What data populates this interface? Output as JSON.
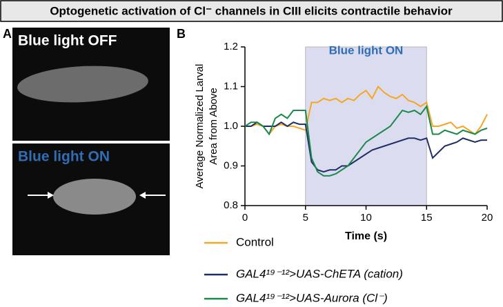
{
  "figure_title": "Optogenetic activation of Cl⁻ channels in CIII elicits contractile behavior",
  "panel_a": {
    "label": "A",
    "top_caption": "Blue light OFF",
    "bottom_caption": "Blue light ON"
  },
  "chart_data": {
    "type": "line",
    "panel_label": "B",
    "xlabel": "Time (s)",
    "ylabel": [
      "Average Normalized Larval",
      "Area from Above"
    ],
    "annotation": {
      "text": "Blue light ON",
      "x": [
        5,
        15
      ],
      "color": "#2f6db5",
      "shade": "#dcdcf0"
    },
    "x": [
      0,
      0.5,
      1,
      1.5,
      2,
      2.5,
      3,
      3.5,
      4,
      4.5,
      5,
      5.5,
      6,
      6.5,
      7,
      7.5,
      8,
      8.5,
      9,
      9.5,
      10,
      10.5,
      11,
      11.5,
      12,
      12.5,
      13,
      13.5,
      14,
      14.5,
      15,
      15.5,
      16,
      16.5,
      17,
      17.5,
      18,
      18.5,
      19,
      19.5,
      20
    ],
    "series": [
      {
        "name": "Control",
        "color": "#f5a623",
        "values": [
          1.0,
          1.0,
          1.005,
          1.0,
          0.98,
          1.0,
          1.005,
          1.0,
          1.0,
          0.995,
          0.99,
          1.06,
          1.06,
          1.07,
          1.065,
          1.07,
          1.06,
          1.07,
          1.065,
          1.08,
          1.09,
          1.07,
          1.1,
          1.085,
          1.075,
          1.07,
          1.08,
          1.065,
          1.06,
          1.05,
          1.06,
          1.0,
          1.0,
          1.005,
          1.01,
          0.995,
          1.0,
          0.99,
          0.98,
          1.0,
          1.03
        ]
      },
      {
        "name": "GAL4¹⁹⁻¹²>UAS-ChETA (cation)",
        "color": "#1f2f66",
        "values": [
          1.0,
          1.0,
          1.01,
          1.0,
          1.0,
          1.0,
          1.01,
          1.0,
          1.01,
          1.005,
          1.005,
          0.91,
          0.89,
          0.885,
          0.89,
          0.89,
          0.9,
          0.9,
          0.91,
          0.92,
          0.93,
          0.94,
          0.945,
          0.95,
          0.955,
          0.96,
          0.965,
          0.97,
          0.97,
          0.965,
          0.97,
          0.92,
          0.935,
          0.95,
          0.955,
          0.96,
          0.97,
          0.965,
          0.96,
          0.965,
          0.965
        ]
      },
      {
        "name": "GAL4¹⁹⁻¹²>UAS-Aurora (Cl⁻)",
        "color": "#1a8a4a",
        "values": [
          1.0,
          1.01,
          1.01,
          1.0,
          0.98,
          1.02,
          1.03,
          1.02,
          1.04,
          1.04,
          1.04,
          0.92,
          0.885,
          0.875,
          0.875,
          0.88,
          0.89,
          0.9,
          0.92,
          0.94,
          0.96,
          0.97,
          0.98,
          0.99,
          1.0,
          1.02,
          1.04,
          1.035,
          1.04,
          1.03,
          1.05,
          0.98,
          0.98,
          0.99,
          0.985,
          0.98,
          0.99,
          0.985,
          0.98,
          0.99,
          0.995
        ]
      }
    ],
    "xlim": [
      0,
      20
    ],
    "xticks": [
      0,
      5,
      10,
      15,
      20
    ],
    "ylim": [
      0.8,
      1.2
    ],
    "yticks": [
      0.8,
      0.9,
      {
        "value": 1,
        "label": "1.0"
      },
      1.1,
      1.2
    ]
  }
}
